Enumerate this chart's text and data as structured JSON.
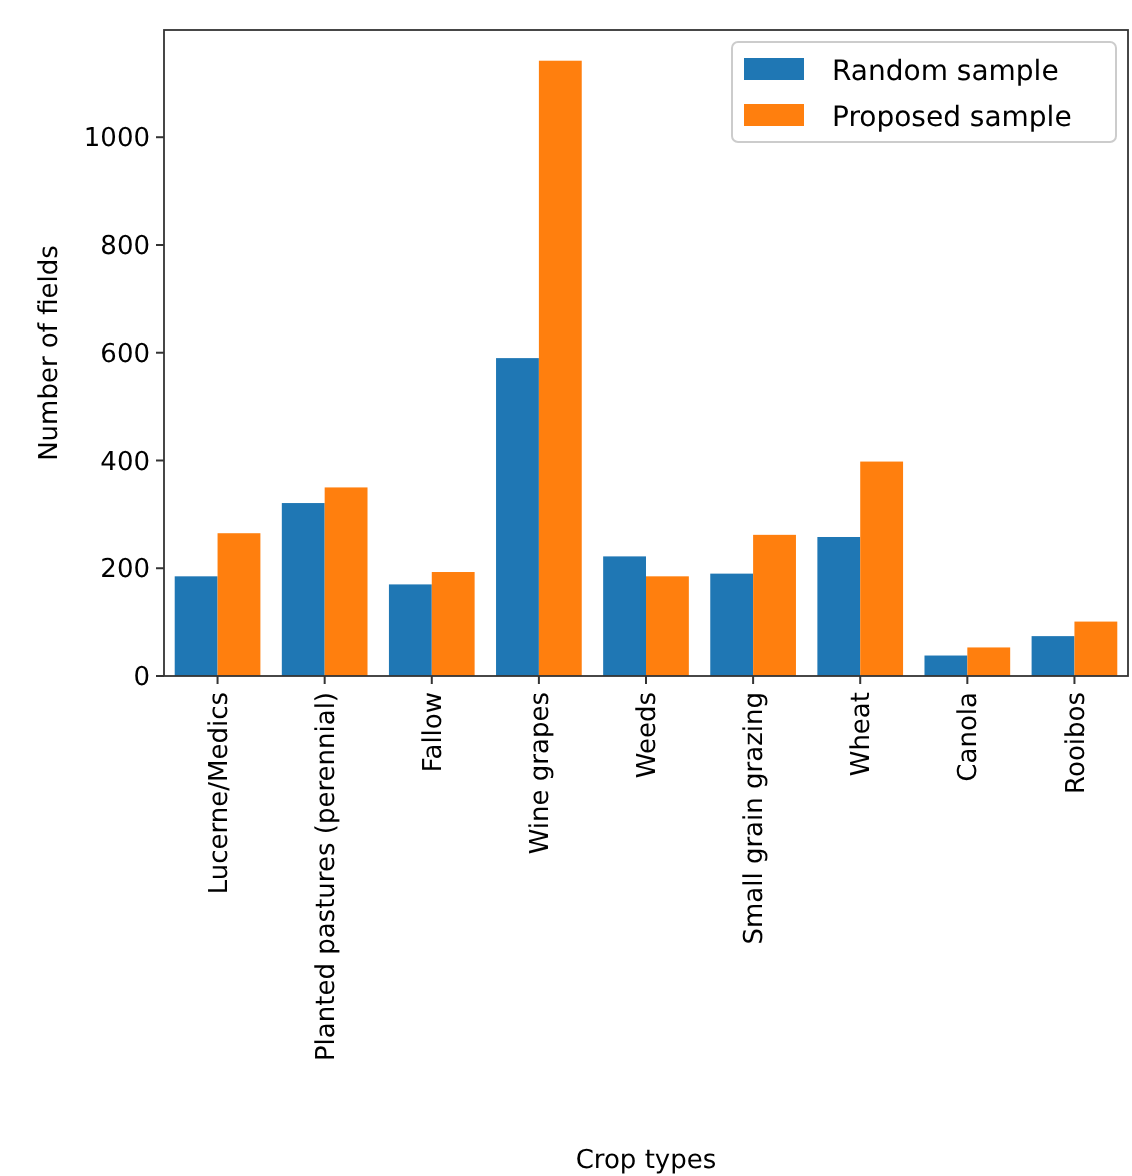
{
  "chart_data": {
    "type": "bar",
    "xlabel": "Crop types",
    "ylabel": "Number of fields",
    "categories": [
      "Lucerne/Medics",
      "Planted pastures (perennial)",
      "Fallow",
      "Wine grapes",
      "Weeds",
      "Small grain grazing",
      "Wheat",
      "Canola",
      "Rooibos"
    ],
    "series": [
      {
        "name": "Random sample",
        "color": "#1f77b4",
        "values": [
          185,
          321,
          170,
          590,
          222,
          190,
          258,
          38,
          74
        ]
      },
      {
        "name": "Proposed sample",
        "color": "#ff7f0e",
        "values": [
          265,
          350,
          193,
          1142,
          185,
          262,
          398,
          53,
          101
        ]
      }
    ],
    "ylim": [
      0,
      1199
    ],
    "yticks": [
      0,
      200,
      400,
      600,
      800,
      1000
    ],
    "legend": "top right"
  }
}
